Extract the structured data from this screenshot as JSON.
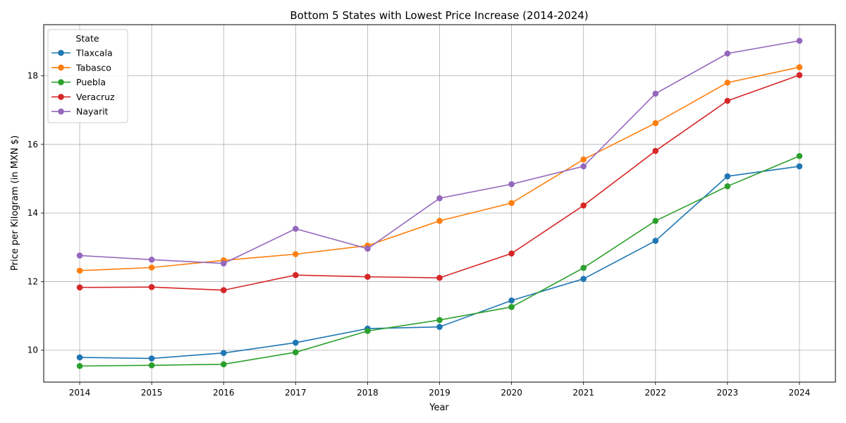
{
  "chart_data": {
    "type": "line",
    "title": "Bottom 5 States with Lowest Price Increase (2014-2024)",
    "xlabel": "Year",
    "ylabel": "Price per Kilogram (in MXN $)",
    "x": [
      2014,
      2015,
      2016,
      2017,
      2018,
      2019,
      2020,
      2021,
      2022,
      2023,
      2024
    ],
    "xlim": [
      2013.5,
      2024.5
    ],
    "ylim": [
      9.07,
      19.49
    ],
    "yticks": [
      10,
      12,
      14,
      16,
      18
    ],
    "grid": true,
    "legend": {
      "title": "State",
      "placement": "top-left"
    },
    "series": [
      {
        "name": "Tlaxcala",
        "color": "#1f77b4",
        "values": [
          9.79,
          9.76,
          9.92,
          10.22,
          10.63,
          10.68,
          11.45,
          12.08,
          13.19,
          15.07,
          15.36
        ]
      },
      {
        "name": "Tabasco",
        "color": "#ff7f0e",
        "values": [
          12.32,
          12.41,
          12.62,
          12.8,
          13.05,
          13.77,
          14.29,
          15.56,
          16.62,
          17.8,
          18.25
        ]
      },
      {
        "name": "Puebla",
        "color": "#2ca02c",
        "values": [
          9.54,
          9.56,
          9.59,
          9.94,
          10.56,
          10.88,
          11.26,
          12.4,
          13.77,
          14.78,
          15.66
        ]
      },
      {
        "name": "Veracruz",
        "color": "#d62728",
        "values": [
          11.83,
          11.84,
          11.75,
          12.19,
          12.14,
          12.11,
          12.82,
          14.22,
          15.81,
          17.27,
          18.02
        ]
      },
      {
        "name": "Nayarit",
        "color": "#9467bd",
        "values": [
          12.76,
          12.64,
          12.53,
          13.54,
          12.96,
          14.43,
          14.84,
          15.36,
          17.48,
          18.65,
          19.02
        ]
      }
    ]
  }
}
